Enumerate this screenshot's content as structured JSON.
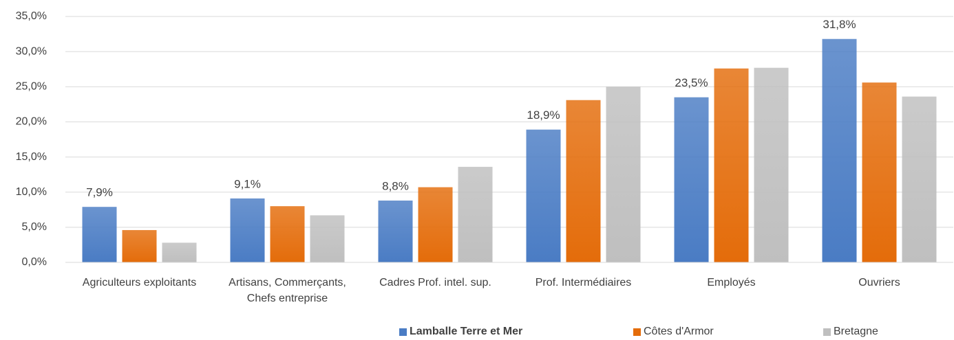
{
  "chart_data": {
    "type": "bar",
    "categories": [
      "Agriculteurs exploitants",
      "Artisans, Commerçants, Chefs entreprise",
      "Cadres Prof. intel. sup.",
      "Prof. Intermédiaires",
      "Employés",
      "Ouvriers"
    ],
    "series": [
      {
        "name": "Lamballe Terre et Mer",
        "color": "#4a7cc4",
        "values": [
          7.9,
          9.1,
          8.8,
          18.9,
          23.5,
          31.8
        ],
        "value_labels": [
          "7,9%",
          "9,1%",
          "8,8%",
          "18,9%",
          "23,5%",
          "31,8%"
        ]
      },
      {
        "name": "Côtes d'Armor",
        "color": "#e46c0a",
        "values": [
          4.6,
          8.0,
          10.7,
          23.1,
          27.6,
          25.6
        ]
      },
      {
        "name": "Bretagne",
        "color": "#bfbfbf",
        "values": [
          2.8,
          6.7,
          13.6,
          25.0,
          27.7,
          23.6
        ]
      }
    ],
    "ylim": [
      0,
      35
    ],
    "yticks": [
      {
        "value": 0,
        "label": "0,0%"
      },
      {
        "value": 5,
        "label": "5,0%"
      },
      {
        "value": 10,
        "label": "10,0%"
      },
      {
        "value": 15,
        "label": "15,0%"
      },
      {
        "value": 20,
        "label": "20,0%"
      },
      {
        "value": 25,
        "label": "25,0%"
      },
      {
        "value": 30,
        "label": "30,0%"
      },
      {
        "value": 35,
        "label": "35,0%"
      }
    ],
    "grid": true,
    "legend": "bottom"
  }
}
